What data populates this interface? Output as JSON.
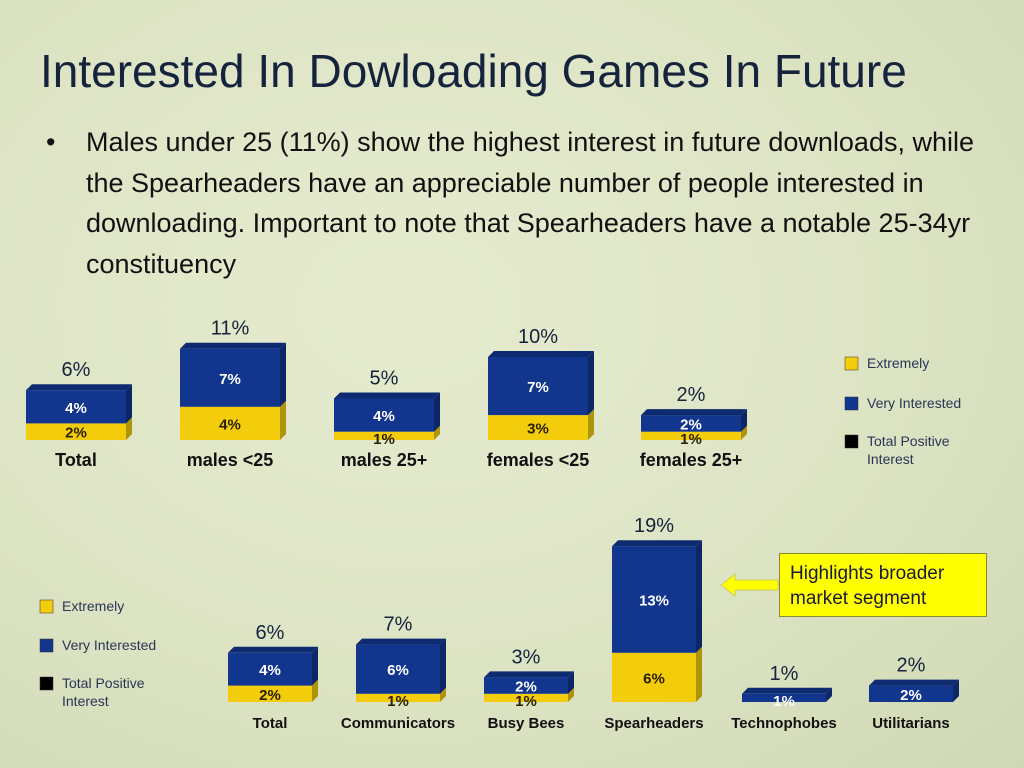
{
  "slide": {
    "title": "Interested In Dowloading Games In Future",
    "bullet": "Males under 25 (11%) show the highest interest in future downloads, while the Spearheaders have an appreciable number of people interested in downloading.  Important to note that Spearheaders have a notable 25-34yr constituency",
    "callout": "Highlights broader market segment"
  },
  "colors": {
    "extremely": "#f3cc0c",
    "very_interested": "#12358d",
    "total_positive": "#000000"
  },
  "chart_data": [
    {
      "type": "bar",
      "stacked": true,
      "categories": [
        "Total",
        "males <25",
        "males 25+",
        "females <25",
        "females 25+"
      ],
      "series": [
        {
          "name": "Extremely",
          "values": [
            2,
            4,
            1,
            3,
            1
          ],
          "labels": [
            "2%",
            "4%",
            "1%",
            "3%",
            "1%"
          ]
        },
        {
          "name": "Very Interested",
          "values": [
            4,
            7,
            4,
            7,
            2
          ],
          "labels": [
            "4%",
            "7%",
            "4%",
            "7%",
            "2%"
          ]
        }
      ],
      "totals": {
        "name": "Total Positive Interest",
        "values": [
          6,
          11,
          5,
          10,
          2
        ],
        "labels": [
          "6%",
          "11%",
          "5%",
          "10%",
          "2%"
        ]
      },
      "legend_position": "right"
    },
    {
      "type": "bar",
      "stacked": true,
      "categories": [
        "Total",
        "Communicators",
        "Busy Bees",
        "Spearheaders",
        "Technophobes",
        "Utilitarians"
      ],
      "series": [
        {
          "name": "Extremely",
          "values": [
            2,
            1,
            1,
            6,
            0,
            0
          ],
          "labels": [
            "2%",
            "1%",
            "1%",
            "6%",
            "",
            ""
          ]
        },
        {
          "name": "Very Interested",
          "values": [
            4,
            6,
            2,
            13,
            1,
            2
          ],
          "labels": [
            "4%",
            "6%",
            "2%",
            "13%",
            "1%",
            "2%"
          ]
        }
      ],
      "totals": {
        "name": "Total Positive Interest",
        "values": [
          6,
          7,
          3,
          19,
          1,
          2
        ],
        "labels": [
          "6%",
          "7%",
          "3%",
          "19%",
          "1%",
          "2%"
        ]
      },
      "legend_position": "left"
    }
  ]
}
